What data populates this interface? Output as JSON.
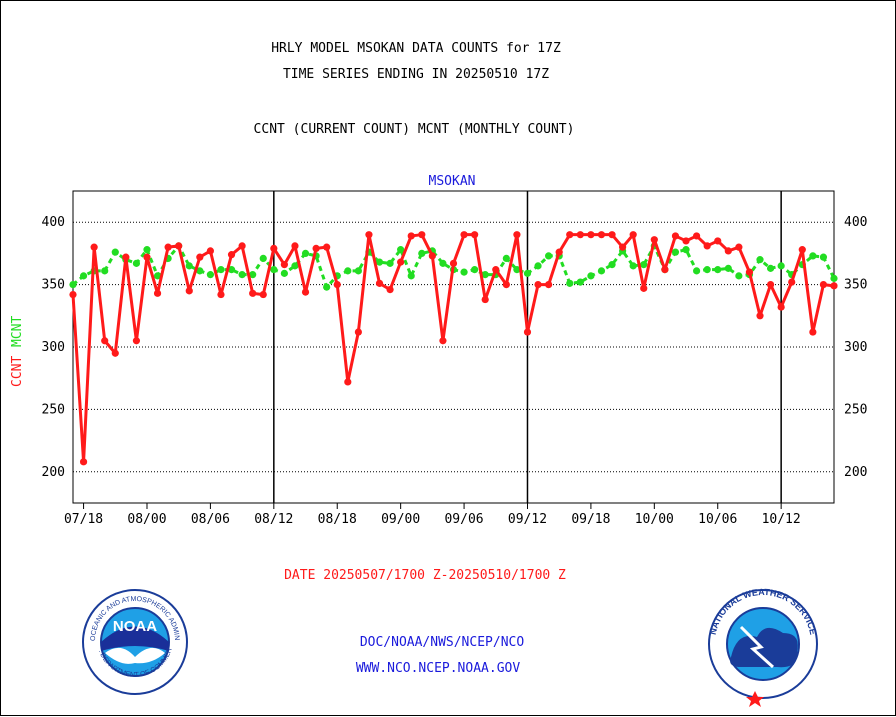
{
  "header": {
    "title_line1": "HRLY MODEL MSOKAN DATA COUNTS for 17Z",
    "title_line2": "TIME SERIES ENDING IN 20250510 17Z",
    "subtitle": "CCNT (CURRENT COUNT) MCNT (MONTHLY COUNT)"
  },
  "footer": {
    "date_range": "DATE 20250507/1700 Z-20250510/1700 Z",
    "org_path": "DOC/NOAA/NWS/NCEP/NCO",
    "website": "WWW.NCO.NCEP.NOAA.GOV"
  },
  "logos": {
    "noaa_text": "NOAA",
    "noaa_ring_top": "NATIONAL OCEANIC AND ATMOSPHERIC ADMINISTRATION",
    "noaa_ring_bottom": "U.S. DEPARTMENT OF COMMERCE",
    "nws_ring": "NATIONAL WEATHER SERVICE"
  },
  "colors": {
    "ccnt": "#ff1a1a",
    "mcnt": "#22dd22",
    "header_text": "#000000",
    "axis_title": "#1a1adc",
    "date_text": "#ff1a1a",
    "footer_text": "#1a1adc"
  },
  "chart_data": {
    "type": "line",
    "title": "MSOKAN",
    "ylabel_ccnt": "CCNT",
    "ylabel_mcnt": "MCNT",
    "ylim": [
      175,
      425
    ],
    "yticks": [
      200,
      250,
      300,
      350,
      400
    ],
    "ytick_labels": [
      "200",
      "250",
      "300",
      "350",
      "400"
    ],
    "xlim": [
      0,
      72
    ],
    "xticks": [
      1,
      7,
      13,
      19,
      25,
      31,
      37,
      43,
      49,
      55,
      61,
      67
    ],
    "xtick_labels": [
      "07/18",
      "08/00",
      "08/06",
      "08/12",
      "08/18",
      "09/00",
      "09/06",
      "09/12",
      "09/18",
      "10/00",
      "10/06",
      "10/12"
    ],
    "day_boundaries": [
      19,
      43,
      67
    ],
    "grid": "dotted horizontal",
    "series": [
      {
        "name": "CCNT",
        "values": [
          342,
          208,
          380,
          305,
          295,
          372,
          305,
          372,
          343,
          380,
          381,
          345,
          372,
          377,
          342,
          374,
          381,
          343,
          342,
          379,
          366,
          381,
          344,
          379,
          380,
          350,
          272,
          312,
          390,
          351,
          346,
          368,
          389,
          390,
          373,
          305,
          367,
          390,
          390,
          338,
          362,
          350,
          390,
          312,
          350,
          350,
          376,
          390,
          390,
          390,
          390,
          390,
          380,
          390,
          347,
          386,
          362,
          389,
          385,
          389,
          381,
          385,
          377,
          380,
          360,
          325,
          350,
          332,
          352,
          378,
          312,
          350,
          349
        ]
      },
      {
        "name": "MCNT",
        "values": [
          350,
          357,
          361,
          361,
          376,
          370,
          367,
          378,
          357,
          371,
          381,
          365,
          361,
          358,
          362,
          362,
          358,
          358,
          371,
          362,
          359,
          365,
          375,
          373,
          348,
          357,
          361,
          361,
          376,
          368,
          367,
          378,
          357,
          375,
          377,
          367,
          362,
          360,
          362,
          358,
          358,
          371,
          362,
          359,
          365,
          373,
          373,
          351,
          352,
          357,
          361,
          366,
          377,
          365,
          366,
          381,
          362,
          376,
          378,
          361,
          362,
          362,
          363,
          357,
          358,
          370,
          363,
          365,
          358,
          366,
          373,
          372,
          355
        ]
      }
    ]
  }
}
